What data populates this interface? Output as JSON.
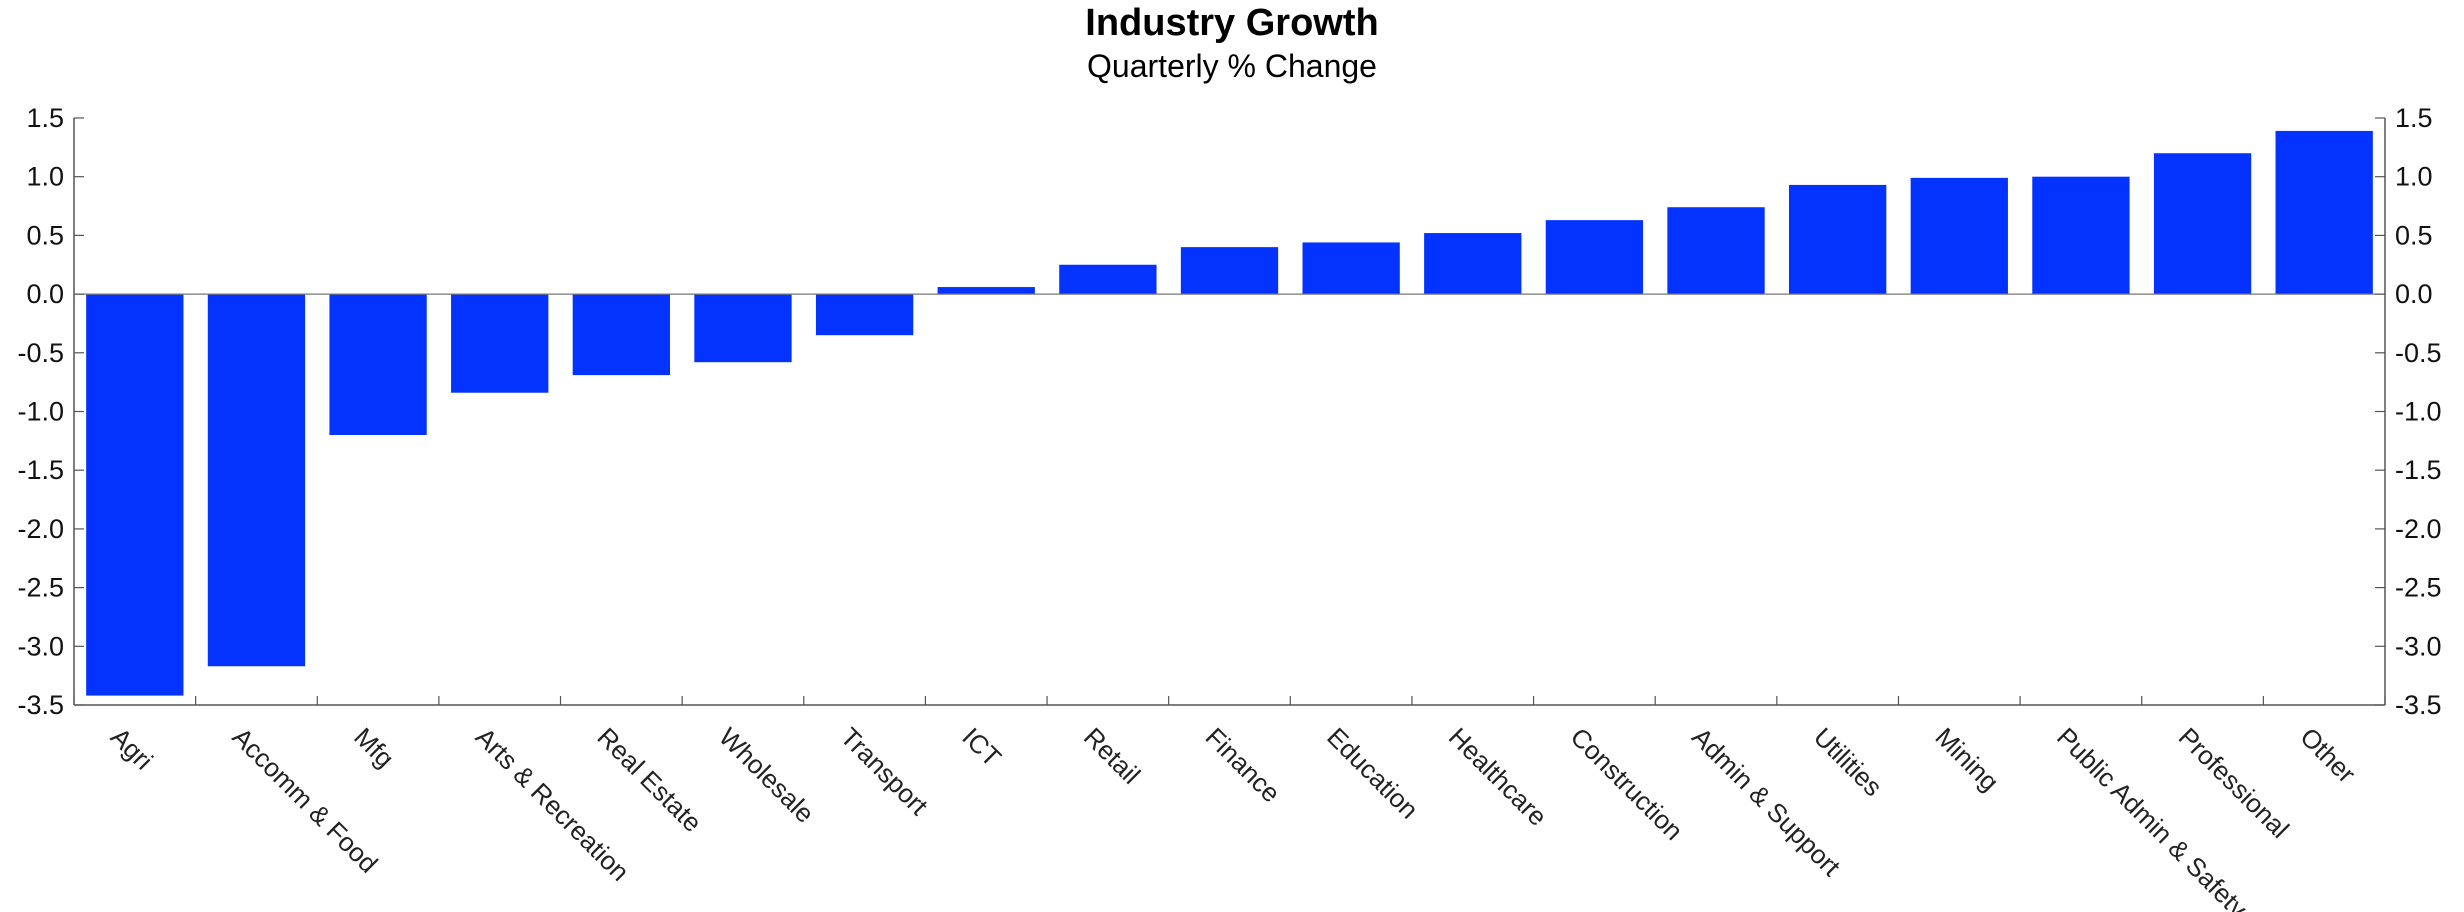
{
  "chart_data": {
    "type": "bar",
    "title": "Industry Growth",
    "subtitle": "Quarterly % Change",
    "xlabel": "",
    "ylabel": "",
    "categories": [
      "Agri",
      "Accomm & Food",
      "Mfg",
      "Arts & Recreation",
      "Real Estate",
      "Wholesale",
      "Transport",
      "ICT",
      "Retail",
      "Finance",
      "Education",
      "Healthcare",
      "Construction",
      "Admin & Support",
      "Utilities",
      "Mining",
      "Public Admin & Safety",
      "Professional",
      "Other"
    ],
    "values": [
      -3.42,
      -3.17,
      -1.2,
      -0.84,
      -0.69,
      -0.58,
      -0.35,
      0.06,
      0.25,
      0.4,
      0.44,
      0.52,
      0.63,
      0.74,
      0.93,
      0.99,
      1.0,
      1.2,
      1.39
    ],
    "ylim": [
      -3.5,
      1.5
    ],
    "yticks": [
      "1.5",
      "1.0",
      "0.5",
      "0.0",
      "-0.5",
      "-1.0",
      "-1.5",
      "-2.0",
      "-2.5",
      "-3.0",
      "-3.5"
    ],
    "bar_color": "#0433FF",
    "grid": false,
    "legend": "none",
    "axes": "left and right mirrored"
  }
}
